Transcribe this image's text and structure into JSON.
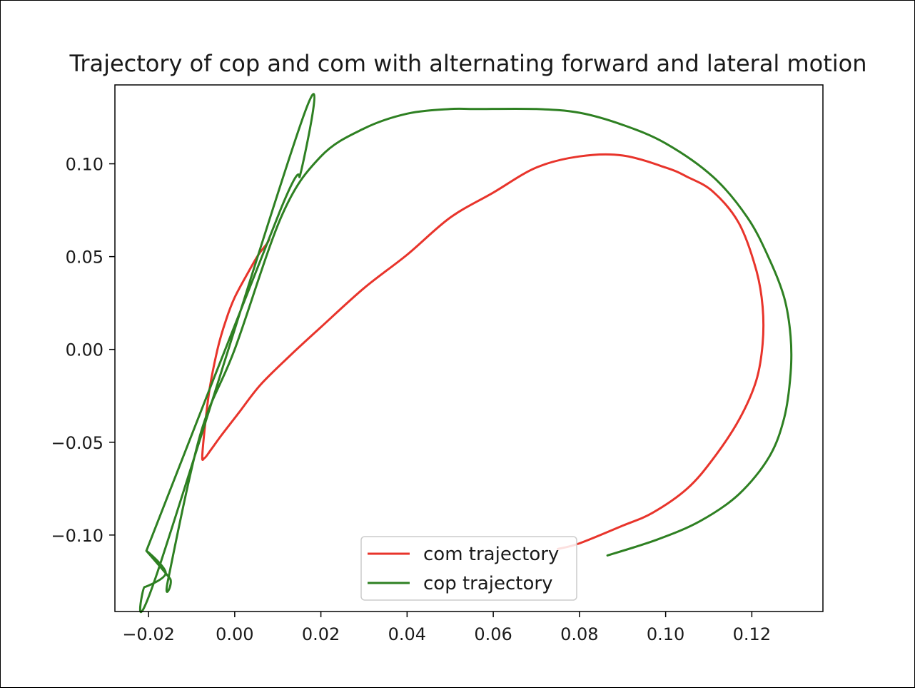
{
  "chart_data": {
    "type": "line",
    "title": "Trajectory of cop and com with alternating forward and lateral motion",
    "xlabel": "",
    "ylabel": "",
    "xlim": [
      -0.0278,
      0.1365
    ],
    "ylim": [
      -0.1412,
      0.1425
    ],
    "xticks": [
      -0.02,
      0.0,
      0.02,
      0.04,
      0.06,
      0.08,
      0.1,
      0.12
    ],
    "xtick_labels": [
      "−0.02",
      "0.00",
      "0.02",
      "0.04",
      "0.06",
      "0.08",
      "0.10",
      "0.12"
    ],
    "yticks": [
      0.1,
      0.05,
      0.0,
      -0.05,
      -0.1
    ],
    "ytick_labels": [
      "0.10",
      "0.05",
      "0.00",
      "−0.05",
      "−0.10"
    ],
    "grid": false,
    "legend": "lower-center",
    "series": [
      {
        "name": "com trajectory",
        "color": "#e8342b",
        "points": [
          [
            0.008,
            0.0595
          ],
          [
            0.0075,
            0.057
          ],
          [
            0.0055,
            0.051
          ],
          [
            0.003,
            0.041
          ],
          [
            0.0,
            0.028
          ],
          [
            -0.002,
            0.016
          ],
          [
            -0.004,
            0.0
          ],
          [
            -0.006,
            -0.024
          ],
          [
            -0.0075,
            -0.056
          ],
          [
            -0.007,
            -0.0585
          ],
          [
            -0.0055,
            -0.054
          ],
          [
            -0.003,
            -0.046
          ],
          [
            0.001,
            -0.034
          ],
          [
            0.006,
            -0.019
          ],
          [
            0.013,
            -0.003
          ],
          [
            0.02,
            0.012
          ],
          [
            0.03,
            0.033
          ],
          [
            0.04,
            0.051
          ],
          [
            0.05,
            0.071
          ],
          [
            0.06,
            0.0845
          ],
          [
            0.07,
            0.098
          ],
          [
            0.08,
            0.104
          ],
          [
            0.09,
            0.1045
          ],
          [
            0.1,
            0.098
          ],
          [
            0.105,
            0.093
          ],
          [
            0.111,
            0.085
          ],
          [
            0.117,
            0.068
          ],
          [
            0.121,
            0.043
          ],
          [
            0.1225,
            0.023
          ],
          [
            0.1225,
            0.003
          ],
          [
            0.121,
            -0.017
          ],
          [
            0.117,
            -0.038
          ],
          [
            0.111,
            -0.059
          ],
          [
            0.105,
            -0.075
          ],
          [
            0.097,
            -0.088
          ],
          [
            0.09,
            -0.095
          ],
          [
            0.08,
            -0.1045
          ],
          [
            0.075,
            -0.1075
          ]
        ]
      },
      {
        "name": "cop trajectory",
        "color": "#2e8022",
        "points": [
          [
            0.0865,
            -0.111
          ],
          [
            0.098,
            -0.1025
          ],
          [
            0.108,
            -0.0925
          ],
          [
            0.117,
            -0.078
          ],
          [
            0.124,
            -0.058
          ],
          [
            0.1275,
            -0.037
          ],
          [
            0.129,
            -0.013
          ],
          [
            0.129,
            0.007
          ],
          [
            0.1275,
            0.028
          ],
          [
            0.124,
            0.049
          ],
          [
            0.119,
            0.071
          ],
          [
            0.111,
            0.093
          ],
          [
            0.1,
            0.111
          ],
          [
            0.09,
            0.121
          ],
          [
            0.08,
            0.1275
          ],
          [
            0.07,
            0.1295
          ],
          [
            0.056,
            0.1295
          ],
          [
            0.05,
            0.1295
          ],
          [
            0.04,
            0.127
          ],
          [
            0.03,
            0.119
          ],
          [
            0.02,
            0.104
          ],
          [
            0.011,
            0.0725
          ],
          [
            0.0,
            0.0
          ],
          [
            -0.008,
            -0.046
          ],
          [
            -0.0155,
            -0.1245
          ],
          [
            -0.015,
            -0.1235
          ],
          [
            -0.0205,
            -0.1085
          ],
          [
            -0.016,
            -0.1205
          ],
          [
            -0.021,
            -0.128
          ],
          [
            -0.018,
            -0.1205
          ],
          [
            0.016,
            0.126
          ],
          [
            0.0153,
            0.095
          ],
          [
            0.0105,
            0.0745
          ],
          [
            -0.0205,
            -0.1085
          ]
        ]
      }
    ]
  }
}
